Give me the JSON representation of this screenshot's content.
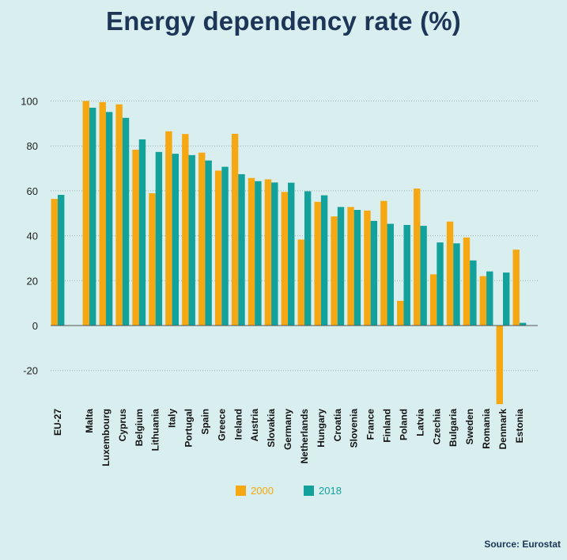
{
  "chart_data": {
    "type": "bar",
    "title": "Energy dependency rate (%)",
    "source": "Source: Eurostat",
    "ylim": [
      -35,
      100
    ],
    "yticks": [
      100,
      80,
      60,
      40,
      20,
      0,
      -20
    ],
    "grid": true,
    "legend_position": "bottom-center",
    "categories": [
      "EU-27",
      "Malta",
      "Luxembourg",
      "Cyprus",
      "Belgium",
      "Lithuania",
      "Italy",
      "Portugal",
      "Spain",
      "Greece",
      "Ireland",
      "Austria",
      "Slovakia",
      "Germany",
      "Netherlands",
      "Hungary",
      "Croatia",
      "Slovenia",
      "France",
      "Finland",
      "Poland",
      "Latvia",
      "Czechia",
      "Bulgaria",
      "Sweden",
      "Romania",
      "Denmark",
      "Estonia"
    ],
    "series": [
      {
        "name": "2000",
        "color": "#f5a811",
        "values": [
          56.4,
          100.0,
          99.5,
          98.5,
          78.3,
          58.9,
          86.5,
          85.3,
          77.0,
          69.0,
          85.4,
          65.7,
          65.1,
          59.5,
          38.3,
          55.1,
          48.6,
          52.8,
          51.2,
          55.5,
          11.0,
          61.0,
          22.8,
          46.3,
          39.2,
          22.0,
          -35.0,
          33.8
        ]
      },
      {
        "name": "2018",
        "color": "#12a19b",
        "values": [
          58.2,
          97.0,
          95.1,
          92.5,
          82.9,
          77.3,
          76.5,
          75.9,
          73.5,
          70.7,
          67.4,
          64.3,
          63.7,
          63.6,
          59.8,
          58.0,
          52.8,
          51.5,
          46.6,
          45.3,
          44.8,
          44.4,
          37.0,
          36.6,
          29.0,
          24.1,
          23.6,
          1.2
        ]
      }
    ]
  }
}
